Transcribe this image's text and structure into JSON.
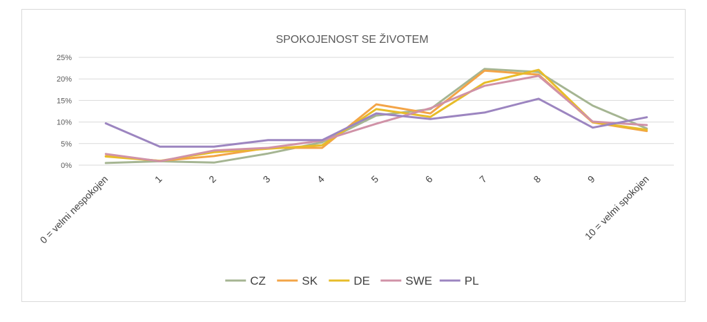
{
  "chart_data": {
    "type": "line",
    "title": "SPOKOJENOST SE ŽIVOTEM",
    "xlabel": "",
    "ylabel": "",
    "categories": [
      "0 = velmi nespokojen",
      "1",
      "2",
      "3",
      "4",
      "5",
      "6",
      "7",
      "8",
      "9",
      "10 = velmi spokojen"
    ],
    "y_ticks": [
      "0%",
      "5%",
      "10%",
      "15%",
      "20%",
      "25%"
    ],
    "ylim": [
      0,
      25
    ],
    "grid": true,
    "legend_position": "bottom",
    "series": [
      {
        "name": "CZ",
        "color": "#a5b592",
        "values": [
          0.5,
          0.9,
          0.6,
          2.7,
          5.3,
          11.5,
          13.0,
          22.3,
          21.6,
          13.8,
          8.5
        ]
      },
      {
        "name": "SK",
        "color": "#f3a447",
        "values": [
          2.1,
          1.0,
          2.1,
          4.0,
          4.0,
          14.1,
          12.0,
          21.9,
          21.0,
          9.9,
          7.9
        ]
      },
      {
        "name": "DE",
        "color": "#e7bc29",
        "values": [
          2.0,
          1.0,
          3.0,
          3.8,
          4.6,
          13.0,
          11.2,
          19.1,
          22.1,
          10.0,
          8.2
        ]
      },
      {
        "name": "SWE",
        "color": "#d092a7",
        "values": [
          2.6,
          0.9,
          3.4,
          4.0,
          5.7,
          9.6,
          13.2,
          18.4,
          20.7,
          10.1,
          9.3
        ]
      },
      {
        "name": "PL",
        "color": "#9c85c0",
        "values": [
          9.7,
          4.3,
          4.3,
          5.8,
          5.8,
          12.0,
          10.7,
          12.2,
          15.4,
          8.7,
          11.1
        ]
      }
    ]
  }
}
